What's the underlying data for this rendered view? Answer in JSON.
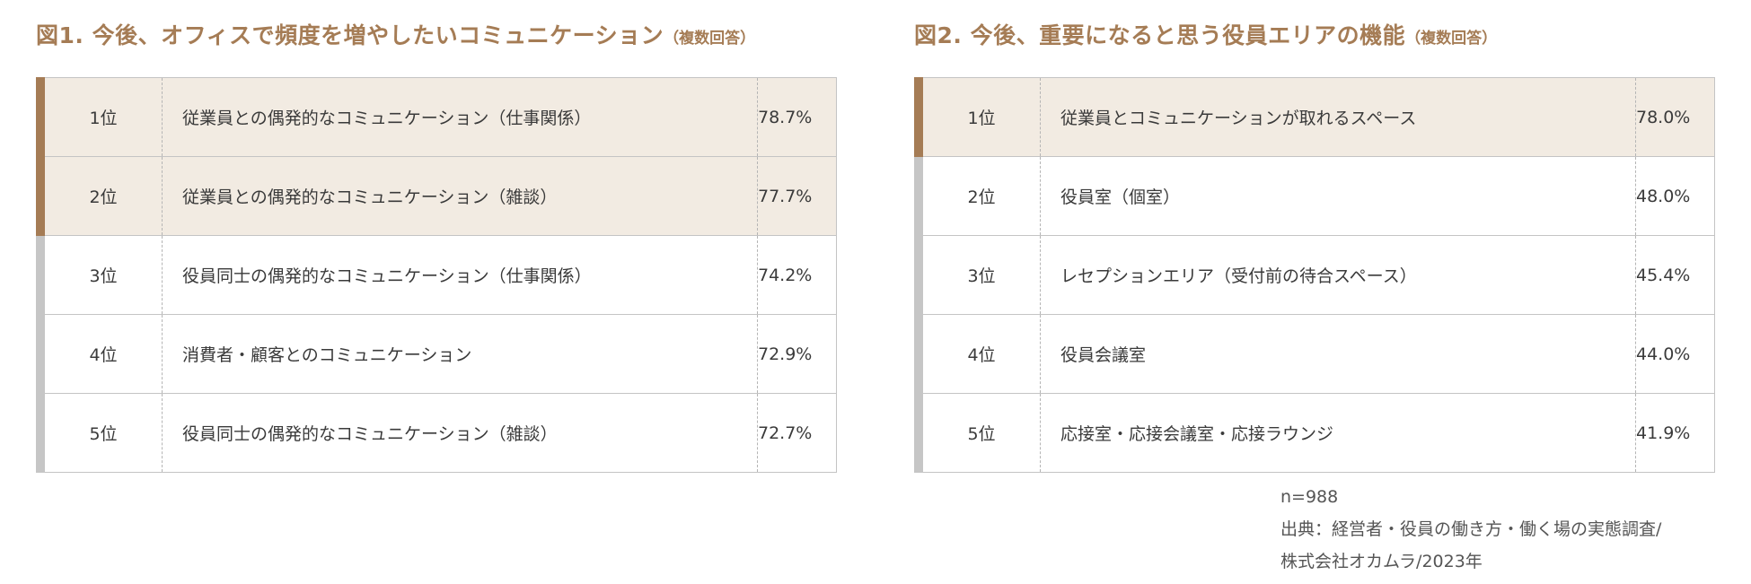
{
  "figure1": {
    "title": "図1. 今後、オフィスで頻度を増やしたいコミュニケーション",
    "title_suffix": "（複数回答）",
    "rows": [
      {
        "rank": "1位",
        "item": "従業員との偶発的なコミュニケーション（仕事関係）",
        "pct": "78.7%",
        "highlight": true
      },
      {
        "rank": "2位",
        "item": "従業員との偶発的なコミュニケーション（雑談）",
        "pct": "77.7%",
        "highlight": true
      },
      {
        "rank": "3位",
        "item": "役員同士の偶発的なコミュニケーション（仕事関係）",
        "pct": "74.2%",
        "highlight": false
      },
      {
        "rank": "4位",
        "item": "消費者・顧客とのコミュニケーション",
        "pct": "72.9%",
        "highlight": false
      },
      {
        "rank": "5位",
        "item": "役員同士の偶発的なコミュニケーション（雑談）",
        "pct": "72.7%",
        "highlight": false
      }
    ]
  },
  "figure2": {
    "title": "図2. 今後、重要になると思う役員エリアの機能",
    "title_suffix": "（複数回答）",
    "rows": [
      {
        "rank": "1位",
        "item": "従業員とコミュニケーションが取れるスペース",
        "pct": "78.0%",
        "highlight": true
      },
      {
        "rank": "2位",
        "item": "役員室（個室）",
        "pct": "48.0%",
        "highlight": false
      },
      {
        "rank": "3位",
        "item": "レセプションエリア（受付前の待合スペース）",
        "pct": "45.4%",
        "highlight": false
      },
      {
        "rank": "4位",
        "item": "役員会議室",
        "pct": "44.0%",
        "highlight": false
      },
      {
        "rank": "5位",
        "item": "応接室・応接会議室・応接ラウンジ",
        "pct": "41.9%",
        "highlight": false
      }
    ]
  },
  "footnote": {
    "sample": "n=988",
    "source_line1": "出典：経営者・役員の働き方・働く場の実態調査/",
    "source_line2": "株式会社オカムラ/2023年"
  },
  "colors": {
    "accent": "#a57c55",
    "highlight_bg": "#f2ebe2",
    "bar_gray": "#c6c6c6",
    "border": "#c4c4c4",
    "text": "#3a3a3a"
  }
}
